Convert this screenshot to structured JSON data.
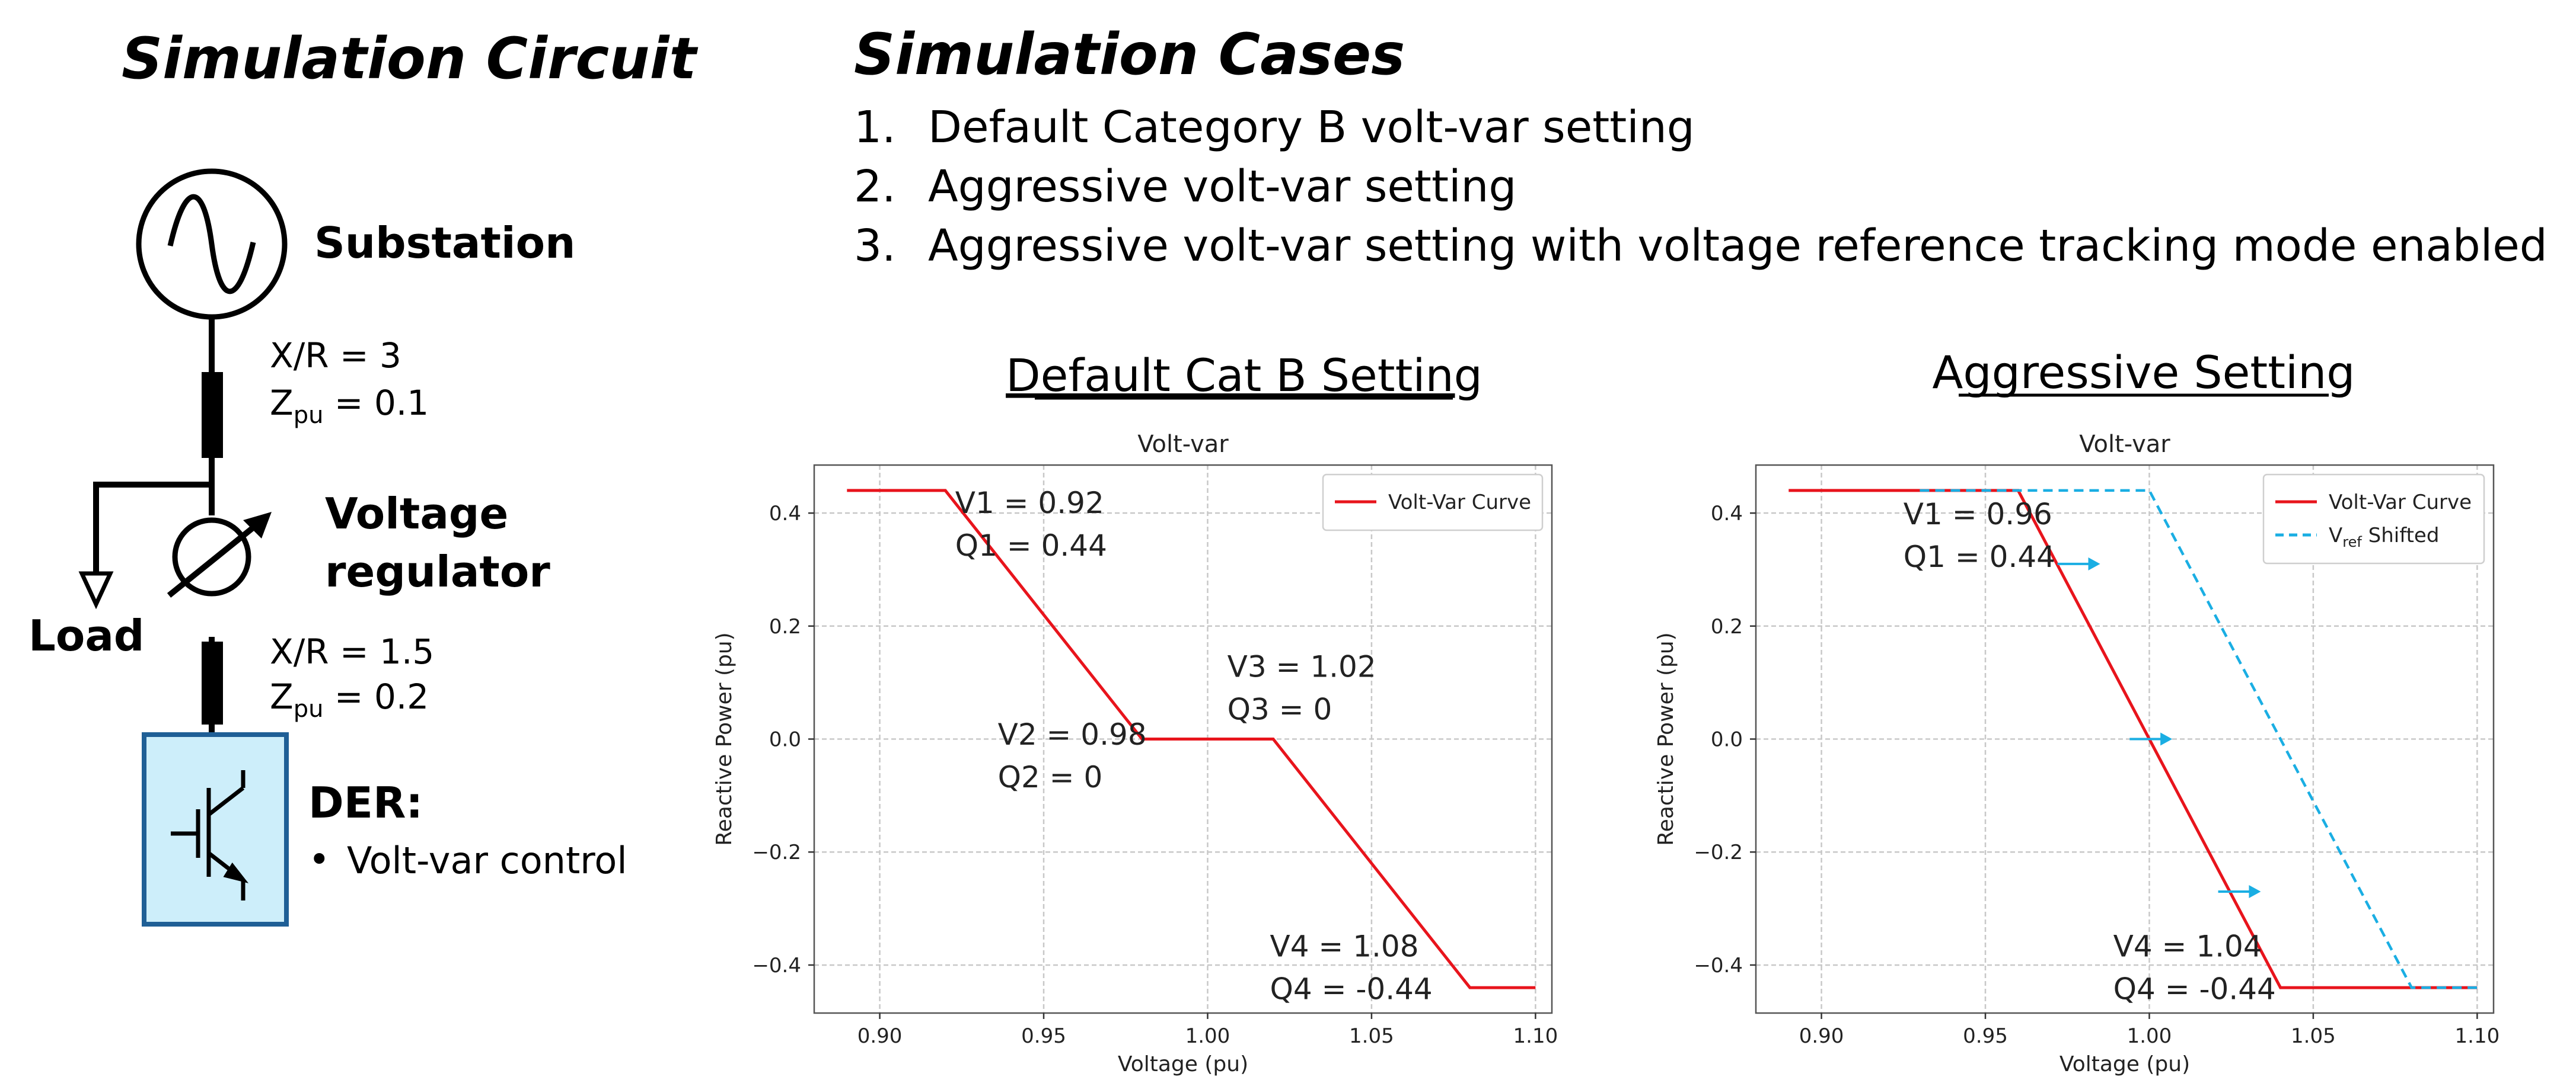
{
  "circuit": {
    "heading": "Simulation Circuit",
    "substation_label": "Substation",
    "line1": {
      "xr": "X/R = 3",
      "z_prefix": "Z",
      "z_sub": "pu",
      "z_suffix": " = 0.1"
    },
    "regulator_label_1": "Voltage",
    "regulator_label_2": "regulator",
    "load_label": "Load",
    "line2": {
      "xr": "X/R = 1.5",
      "z_prefix": "Z",
      "z_sub": "pu",
      "z_suffix": " = 0.2"
    },
    "der_label": "DER:",
    "der_bullet": "•",
    "der_item": "Volt-var control",
    "colors": {
      "der_fill": "#cdeefa",
      "der_border": "#1f5f96",
      "lines": "#000000"
    }
  },
  "cases": {
    "heading": "Simulation Cases",
    "items": [
      {
        "num": "1.",
        "text": "Default Category B volt-var setting"
      },
      {
        "num": "2.",
        "text": "Aggressive volt-var setting"
      },
      {
        "num": "3.",
        "text": "Aggressive volt-var setting with voltage reference tracking mode enabled"
      }
    ]
  },
  "chart_data": [
    {
      "type": "line",
      "heading": "Default Cat B Setting",
      "title": "Volt-var",
      "xlabel": "Voltage (pu)",
      "ylabel": "Reactive Power (pu)",
      "xlim": [
        0.88,
        1.105
      ],
      "ylim": [
        -0.485,
        0.485
      ],
      "xticks": [
        0.9,
        0.95,
        1.0,
        1.05,
        1.1
      ],
      "xtick_labels": [
        "0.90",
        "0.95",
        "1.00",
        "1.05",
        "1.10"
      ],
      "yticks": [
        -0.4,
        -0.2,
        0.0,
        0.2,
        0.4
      ],
      "ytick_labels": [
        "−0.4",
        "−0.2",
        "0.0",
        "0.2",
        "0.4"
      ],
      "grid": true,
      "legend_position": "upper right",
      "series": [
        {
          "name": "Volt-Var Curve",
          "color": "#e8141c",
          "style": "solid",
          "x": [
            0.89,
            0.92,
            0.98,
            1.02,
            1.08,
            1.1
          ],
          "y": [
            0.44,
            0.44,
            0.0,
            0.0,
            -0.44,
            -0.44
          ]
        }
      ],
      "annotations": [
        {
          "lines": [
            "V1 = 0.92",
            "Q1 = 0.44"
          ],
          "x": 0.923,
          "y": 0.4
        },
        {
          "lines": [
            "V2 = 0.98",
            "Q2 = 0"
          ],
          "x": 0.936,
          "y": -0.01
        },
        {
          "lines": [
            "V3 = 1.02",
            "Q3 = 0"
          ],
          "x": 1.006,
          "y": 0.11
        },
        {
          "lines": [
            "V4 = 1.08",
            "Q4 = -0.44"
          ],
          "x": 1.019,
          "y": -0.385
        }
      ],
      "arrows": []
    },
    {
      "type": "line",
      "heading": "Aggressive Setting",
      "title": "Volt-var",
      "xlabel": "Voltage (pu)",
      "ylabel": "Reactive Power (pu)",
      "xlim": [
        0.88,
        1.105
      ],
      "ylim": [
        -0.485,
        0.485
      ],
      "xticks": [
        0.9,
        0.95,
        1.0,
        1.05,
        1.1
      ],
      "xtick_labels": [
        "0.90",
        "0.95",
        "1.00",
        "1.05",
        "1.10"
      ],
      "yticks": [
        -0.4,
        -0.2,
        0.0,
        0.2,
        0.4
      ],
      "ytick_labels": [
        "−0.4",
        "−0.2",
        "0.0",
        "0.2",
        "0.4"
      ],
      "grid": true,
      "legend_position": "upper right",
      "series": [
        {
          "name": "Volt-Var Curve",
          "color": "#e8141c",
          "style": "solid",
          "x": [
            0.89,
            0.96,
            1.04,
            1.1
          ],
          "y": [
            0.44,
            0.44,
            -0.44,
            -0.44
          ]
        },
        {
          "name": "Shifted",
          "name_prefix": "V",
          "name_sub": "ref",
          "color": "#1aaee3",
          "style": "dashed",
          "x": [
            0.93,
            1.0,
            1.08,
            1.1
          ],
          "y": [
            0.44,
            0.44,
            -0.44,
            -0.44
          ]
        }
      ],
      "annotations": [
        {
          "lines": [
            "V1 = 0.96",
            "Q1 = 0.44"
          ],
          "x": 0.925,
          "y": 0.38
        },
        {
          "lines": [
            "V4 = 1.04",
            "Q4 = -0.44"
          ],
          "x": 0.989,
          "y": -0.385
        }
      ],
      "arrows": [
        {
          "x0": 0.972,
          "x1": 0.985,
          "y": 0.31
        },
        {
          "x0": 0.994,
          "x1": 1.007,
          "y": 0.0
        },
        {
          "x0": 1.021,
          "x1": 1.034,
          "y": -0.27
        }
      ]
    }
  ]
}
